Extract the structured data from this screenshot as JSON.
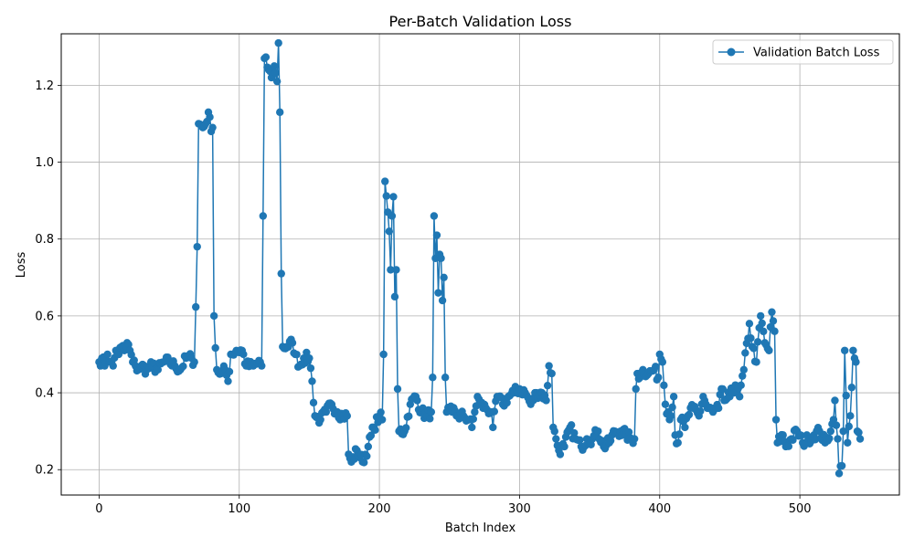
{
  "chart_data": {
    "type": "line",
    "title": "Per-Batch Validation Loss",
    "xlabel": "Batch Index",
    "ylabel": "Loss",
    "xlim": [
      -27,
      571
    ],
    "ylim": [
      0.134,
      1.334
    ],
    "xticks": [
      0,
      100,
      200,
      300,
      400,
      500
    ],
    "yticks": [
      0.2,
      0.4,
      0.6,
      0.8,
      1.0,
      1.2
    ],
    "ytick_labels": [
      "0.2",
      "0.4",
      "0.6",
      "0.8",
      "1.0",
      "1.2"
    ],
    "grid": true,
    "legend_position": "top-right",
    "marker": "circle",
    "colors": {
      "series": "#1f77b4",
      "grid": "#b0b0b0",
      "axis": "#000000"
    },
    "series": [
      {
        "name": "Validation Batch Loss",
        "anchors": [
          [
            0,
            0.48
          ],
          [
            2,
            0.49
          ],
          [
            4,
            0.47
          ],
          [
            6,
            0.5
          ],
          [
            8,
            0.48
          ],
          [
            10,
            0.47
          ],
          [
            12,
            0.51
          ],
          [
            14,
            0.5
          ],
          [
            16,
            0.52
          ],
          [
            18,
            0.51
          ],
          [
            20,
            0.53
          ],
          [
            22,
            0.51
          ],
          [
            24,
            0.48
          ],
          [
            26,
            0.47
          ],
          [
            28,
            0.46
          ],
          [
            30,
            0.47
          ],
          [
            34,
            0.46
          ],
          [
            38,
            0.47
          ],
          [
            42,
            0.46
          ],
          [
            46,
            0.48
          ],
          [
            50,
            0.48
          ],
          [
            54,
            0.47
          ],
          [
            58,
            0.46
          ],
          [
            62,
            0.49
          ],
          [
            66,
            0.49
          ],
          [
            68,
            0.48
          ],
          [
            70,
            0.78
          ],
          [
            71,
            1.1
          ],
          [
            74,
            1.09
          ],
          [
            76,
            1.1
          ],
          [
            78,
            1.13
          ],
          [
            80,
            1.08
          ],
          [
            81,
            1.09
          ],
          [
            82,
            0.6
          ],
          [
            84,
            0.46
          ],
          [
            87,
            0.45
          ],
          [
            90,
            0.46
          ],
          [
            92,
            0.43
          ],
          [
            94,
            0.5
          ],
          [
            98,
            0.51
          ],
          [
            102,
            0.51
          ],
          [
            105,
            0.47
          ],
          [
            110,
            0.47
          ],
          [
            115,
            0.48
          ],
          [
            116,
            0.47
          ],
          [
            117,
            0.86
          ],
          [
            118,
            1.27
          ],
          [
            121,
            1.24
          ],
          [
            123,
            1.22
          ],
          [
            125,
            1.25
          ],
          [
            127,
            1.21
          ],
          [
            128,
            1.31
          ],
          [
            129,
            1.13
          ],
          [
            130,
            0.71
          ],
          [
            131,
            0.52
          ],
          [
            134,
            0.52
          ],
          [
            138,
            0.53
          ],
          [
            140,
            0.5
          ],
          [
            143,
            0.47
          ],
          [
            146,
            0.49
          ],
          [
            150,
            0.49
          ],
          [
            152,
            0.43
          ],
          [
            154,
            0.34
          ],
          [
            158,
            0.33
          ],
          [
            162,
            0.35
          ],
          [
            166,
            0.37
          ],
          [
            170,
            0.35
          ],
          [
            174,
            0.34
          ],
          [
            177,
            0.34
          ],
          [
            178,
            0.24
          ],
          [
            180,
            0.22
          ],
          [
            184,
            0.25
          ],
          [
            188,
            0.22
          ],
          [
            192,
            0.26
          ],
          [
            196,
            0.31
          ],
          [
            200,
            0.34
          ],
          [
            202,
            0.33
          ],
          [
            203,
            0.5
          ],
          [
            204,
            0.95
          ],
          [
            206,
            0.87
          ],
          [
            207,
            0.82
          ],
          [
            208,
            0.72
          ],
          [
            209,
            0.86
          ],
          [
            210,
            0.91
          ],
          [
            211,
            0.65
          ],
          [
            212,
            0.72
          ],
          [
            213,
            0.41
          ],
          [
            214,
            0.3
          ],
          [
            218,
            0.3
          ],
          [
            222,
            0.37
          ],
          [
            226,
            0.39
          ],
          [
            230,
            0.35
          ],
          [
            234,
            0.34
          ],
          [
            237,
            0.35
          ],
          [
            238,
            0.44
          ],
          [
            239,
            0.86
          ],
          [
            240,
            0.75
          ],
          [
            241,
            0.81
          ],
          [
            242,
            0.66
          ],
          [
            243,
            0.76
          ],
          [
            244,
            0.75
          ],
          [
            245,
            0.64
          ],
          [
            246,
            0.7
          ],
          [
            247,
            0.44
          ],
          [
            248,
            0.35
          ],
          [
            252,
            0.35
          ],
          [
            256,
            0.34
          ],
          [
            260,
            0.34
          ],
          [
            264,
            0.33
          ],
          [
            266,
            0.31
          ],
          [
            268,
            0.35
          ],
          [
            270,
            0.39
          ],
          [
            272,
            0.37
          ],
          [
            276,
            0.36
          ],
          [
            280,
            0.35
          ],
          [
            281,
            0.31
          ],
          [
            284,
            0.39
          ],
          [
            288,
            0.37
          ],
          [
            292,
            0.39
          ],
          [
            296,
            0.4
          ],
          [
            300,
            0.41
          ],
          [
            304,
            0.4
          ],
          [
            308,
            0.37
          ],
          [
            312,
            0.4
          ],
          [
            316,
            0.4
          ],
          [
            319,
            0.38
          ],
          [
            321,
            0.47
          ],
          [
            323,
            0.45
          ],
          [
            324,
            0.31
          ],
          [
            326,
            0.28
          ],
          [
            328,
            0.25
          ],
          [
            332,
            0.26
          ],
          [
            336,
            0.31
          ],
          [
            340,
            0.28
          ],
          [
            344,
            0.26
          ],
          [
            348,
            0.28
          ],
          [
            352,
            0.28
          ],
          [
            356,
            0.3
          ],
          [
            360,
            0.26
          ],
          [
            364,
            0.27
          ],
          [
            368,
            0.3
          ],
          [
            372,
            0.3
          ],
          [
            376,
            0.29
          ],
          [
            380,
            0.28
          ],
          [
            382,
            0.28
          ],
          [
            383,
            0.41
          ],
          [
            384,
            0.45
          ],
          [
            386,
            0.44
          ],
          [
            388,
            0.46
          ],
          [
            392,
            0.45
          ],
          [
            396,
            0.46
          ],
          [
            399,
            0.44
          ],
          [
            400,
            0.5
          ],
          [
            402,
            0.48
          ],
          [
            404,
            0.37
          ],
          [
            406,
            0.35
          ],
          [
            408,
            0.34
          ],
          [
            410,
            0.39
          ],
          [
            411,
            0.29
          ],
          [
            413,
            0.27
          ],
          [
            415,
            0.33
          ],
          [
            418,
            0.31
          ],
          [
            420,
            0.34
          ],
          [
            424,
            0.36
          ],
          [
            428,
            0.34
          ],
          [
            431,
            0.39
          ],
          [
            434,
            0.36
          ],
          [
            438,
            0.35
          ],
          [
            442,
            0.36
          ],
          [
            444,
            0.41
          ],
          [
            446,
            0.38
          ],
          [
            450,
            0.39
          ],
          [
            454,
            0.42
          ],
          [
            457,
            0.39
          ],
          [
            460,
            0.46
          ],
          [
            464,
            0.58
          ],
          [
            466,
            0.52
          ],
          [
            469,
            0.48
          ],
          [
            472,
            0.6
          ],
          [
            475,
            0.53
          ],
          [
            478,
            0.51
          ],
          [
            480,
            0.61
          ],
          [
            482,
            0.56
          ],
          [
            483,
            0.33
          ],
          [
            484,
            0.27
          ],
          [
            488,
            0.29
          ],
          [
            490,
            0.26
          ],
          [
            494,
            0.28
          ],
          [
            498,
            0.3
          ],
          [
            502,
            0.27
          ],
          [
            506,
            0.28
          ],
          [
            510,
            0.29
          ],
          [
            514,
            0.3
          ],
          [
            518,
            0.27
          ],
          [
            522,
            0.3
          ],
          [
            524,
            0.33
          ],
          [
            525,
            0.38
          ],
          [
            527,
            0.28
          ],
          [
            528,
            0.19
          ],
          [
            530,
            0.21
          ],
          [
            531,
            0.3
          ],
          [
            532,
            0.51
          ],
          [
            534,
            0.27
          ],
          [
            536,
            0.34
          ],
          [
            538,
            0.51
          ],
          [
            540,
            0.48
          ],
          [
            541,
            0.3
          ],
          [
            543,
            0.28
          ]
        ]
      }
    ]
  }
}
